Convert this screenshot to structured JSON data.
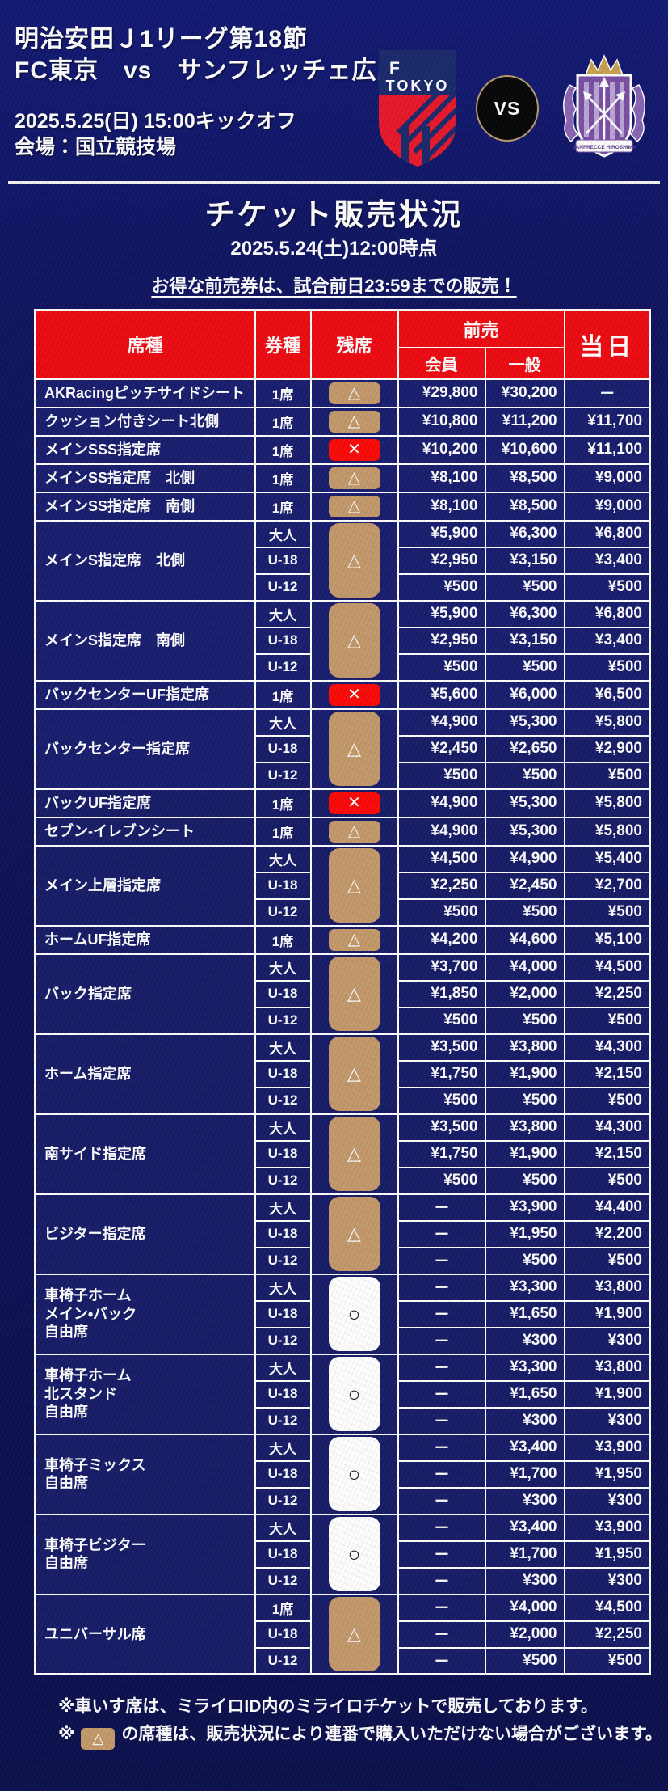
{
  "header": {
    "competition": "明治安田Ｊ1リーグ第18節",
    "matchup": "FC東京　vs　サンフレッチェ広島",
    "kickoff": "2025.5.25(日) 15:00キックオフ",
    "venue": "会場：国立競技場",
    "vs_label": "VS",
    "home_logo": {
      "name": "fc-tokyo-crest",
      "line1": "F C",
      "line2": "TOKYO"
    },
    "away_logo": {
      "name": "sanfrecce-hiroshima-crest",
      "banner": "SANFRECCE HIROSHIMA"
    }
  },
  "title": {
    "heading": "チケット販売状況",
    "as_of": "2025.5.24(土)12:00時点",
    "promo": "お得な前売券は、試合前日23:59までの販売！"
  },
  "colors": {
    "page_navy": "#10155f",
    "cell_navy": "#1a1f6f",
    "header_red": "#ee0b13",
    "badge_tan": "#c49a6b",
    "badge_red": "#fb0a08",
    "badge_white": "#ffffff",
    "vs_gold": "#b99c6b"
  },
  "table": {
    "headers": {
      "seat": "席種",
      "ticket": "券種",
      "stock": "残席",
      "advance": "前売",
      "member": "会員",
      "general": "一般",
      "sameday": "当日"
    },
    "badge_symbols": {
      "limited": "△",
      "soldout": "✕",
      "available": "○"
    },
    "rows": [
      {
        "name": "AKRacingピッチサイドシート",
        "types": [
          "1席"
        ],
        "status": "limited",
        "member": [
          "¥29,800"
        ],
        "general": [
          "¥30,200"
        ],
        "sameday": [
          "ー"
        ]
      },
      {
        "name": "クッション付きシート北側",
        "types": [
          "1席"
        ],
        "status": "limited",
        "member": [
          "¥10,800"
        ],
        "general": [
          "¥11,200"
        ],
        "sameday": [
          "¥11,700"
        ]
      },
      {
        "name": "メインSSS指定席",
        "types": [
          "1席"
        ],
        "status": "soldout",
        "member": [
          "¥10,200"
        ],
        "general": [
          "¥10,600"
        ],
        "sameday": [
          "¥11,100"
        ]
      },
      {
        "name": "メインSS指定席　北側",
        "types": [
          "1席"
        ],
        "status": "limited",
        "member": [
          "¥8,100"
        ],
        "general": [
          "¥8,500"
        ],
        "sameday": [
          "¥9,000"
        ]
      },
      {
        "name": "メインSS指定席　南側",
        "types": [
          "1席"
        ],
        "status": "limited",
        "member": [
          "¥8,100"
        ],
        "general": [
          "¥8,500"
        ],
        "sameday": [
          "¥9,000"
        ]
      },
      {
        "name": "メインS指定席　北側",
        "types": [
          "大人",
          "U-18",
          "U-12"
        ],
        "status": "limited",
        "member": [
          "¥5,900",
          "¥2,950",
          "¥500"
        ],
        "general": [
          "¥6,300",
          "¥3,150",
          "¥500"
        ],
        "sameday": [
          "¥6,800",
          "¥3,400",
          "¥500"
        ]
      },
      {
        "name": "メインS指定席　南側",
        "types": [
          "大人",
          "U-18",
          "U-12"
        ],
        "status": "limited",
        "member": [
          "¥5,900",
          "¥2,950",
          "¥500"
        ],
        "general": [
          "¥6,300",
          "¥3,150",
          "¥500"
        ],
        "sameday": [
          "¥6,800",
          "¥3,400",
          "¥500"
        ]
      },
      {
        "name": "バックセンターUF指定席",
        "types": [
          "1席"
        ],
        "status": "soldout",
        "member": [
          "¥5,600"
        ],
        "general": [
          "¥6,000"
        ],
        "sameday": [
          "¥6,500"
        ]
      },
      {
        "name": "バックセンター指定席",
        "types": [
          "大人",
          "U-18",
          "U-12"
        ],
        "status": "limited",
        "member": [
          "¥4,900",
          "¥2,450",
          "¥500"
        ],
        "general": [
          "¥5,300",
          "¥2,650",
          "¥500"
        ],
        "sameday": [
          "¥5,800",
          "¥2,900",
          "¥500"
        ]
      },
      {
        "name": "バックUF指定席",
        "types": [
          "1席"
        ],
        "status": "soldout",
        "member": [
          "¥4,900"
        ],
        "general": [
          "¥5,300"
        ],
        "sameday": [
          "¥5,800"
        ]
      },
      {
        "name": "セブン-イレブンシート",
        "types": [
          "1席"
        ],
        "status": "limited",
        "member": [
          "¥4,900"
        ],
        "general": [
          "¥5,300"
        ],
        "sameday": [
          "¥5,800"
        ]
      },
      {
        "name": "メイン上層指定席",
        "types": [
          "大人",
          "U-18",
          "U-12"
        ],
        "status": "limited",
        "member": [
          "¥4,500",
          "¥2,250",
          "¥500"
        ],
        "general": [
          "¥4,900",
          "¥2,450",
          "¥500"
        ],
        "sameday": [
          "¥5,400",
          "¥2,700",
          "¥500"
        ]
      },
      {
        "name": "ホームUF指定席",
        "types": [
          "1席"
        ],
        "status": "limited",
        "member": [
          "¥4,200"
        ],
        "general": [
          "¥4,600"
        ],
        "sameday": [
          "¥5,100"
        ]
      },
      {
        "name": "バック指定席",
        "types": [
          "大人",
          "U-18",
          "U-12"
        ],
        "status": "limited",
        "member": [
          "¥3,700",
          "¥1,850",
          "¥500"
        ],
        "general": [
          "¥4,000",
          "¥2,000",
          "¥500"
        ],
        "sameday": [
          "¥4,500",
          "¥2,250",
          "¥500"
        ]
      },
      {
        "name": "ホーム指定席",
        "types": [
          "大人",
          "U-18",
          "U-12"
        ],
        "status": "limited",
        "member": [
          "¥3,500",
          "¥1,750",
          "¥500"
        ],
        "general": [
          "¥3,800",
          "¥1,900",
          "¥500"
        ],
        "sameday": [
          "¥4,300",
          "¥2,150",
          "¥500"
        ]
      },
      {
        "name": "南サイド指定席",
        "types": [
          "大人",
          "U-18",
          "U-12"
        ],
        "status": "limited",
        "member": [
          "¥3,500",
          "¥1,750",
          "¥500"
        ],
        "general": [
          "¥3,800",
          "¥1,900",
          "¥500"
        ],
        "sameday": [
          "¥4,300",
          "¥2,150",
          "¥500"
        ]
      },
      {
        "name": "ビジター指定席",
        "types": [
          "大人",
          "U-18",
          "U-12"
        ],
        "status": "limited",
        "member": [
          "ー",
          "ー",
          "ー"
        ],
        "general": [
          "¥3,900",
          "¥1,950",
          "¥500"
        ],
        "sameday": [
          "¥4,400",
          "¥2,200",
          "¥500"
        ]
      },
      {
        "name": "車椅子ホーム\nメイン・バック\n自由席",
        "types": [
          "大人",
          "U-18",
          "U-12"
        ],
        "status": "available",
        "member": [
          "ー",
          "ー",
          "ー"
        ],
        "general": [
          "¥3,300",
          "¥1,650",
          "¥300"
        ],
        "sameday": [
          "¥3,800",
          "¥1,900",
          "¥300"
        ]
      },
      {
        "name": "車椅子ホーム\n北スタンド\n自由席",
        "types": [
          "大人",
          "U-18",
          "U-12"
        ],
        "status": "available",
        "member": [
          "ー",
          "ー",
          "ー"
        ],
        "general": [
          "¥3,300",
          "¥1,650",
          "¥300"
        ],
        "sameday": [
          "¥3,800",
          "¥1,900",
          "¥300"
        ]
      },
      {
        "name": "車椅子ミックス\n自由席",
        "types": [
          "大人",
          "U-18",
          "U-12"
        ],
        "status": "available",
        "member": [
          "ー",
          "ー",
          "ー"
        ],
        "general": [
          "¥3,400",
          "¥1,700",
          "¥300"
        ],
        "sameday": [
          "¥3,900",
          "¥1,950",
          "¥300"
        ]
      },
      {
        "name": "車椅子ビジター\n自由席",
        "types": [
          "大人",
          "U-18",
          "U-12"
        ],
        "status": "available",
        "member": [
          "ー",
          "ー",
          "ー"
        ],
        "general": [
          "¥3,400",
          "¥1,700",
          "¥300"
        ],
        "sameday": [
          "¥3,900",
          "¥1,950",
          "¥300"
        ]
      },
      {
        "name": "ユニバーサル席",
        "types": [
          "1席",
          "U-18",
          "U-12"
        ],
        "status": "limited",
        "member": [
          "ー",
          "ー",
          "ー"
        ],
        "general": [
          "¥4,000",
          "¥2,000",
          "¥500"
        ],
        "sameday": [
          "¥4,500",
          "¥2,250",
          "¥500"
        ]
      }
    ]
  },
  "notes": [
    {
      "text": "※車いす席は、ミライロID内のミライロチケットで販売しております。"
    },
    {
      "prefix": "※",
      "badge_symbol": "△",
      "suffix": "の席種は、販売状況により連番で購入いただけない場合がございます。"
    }
  ]
}
